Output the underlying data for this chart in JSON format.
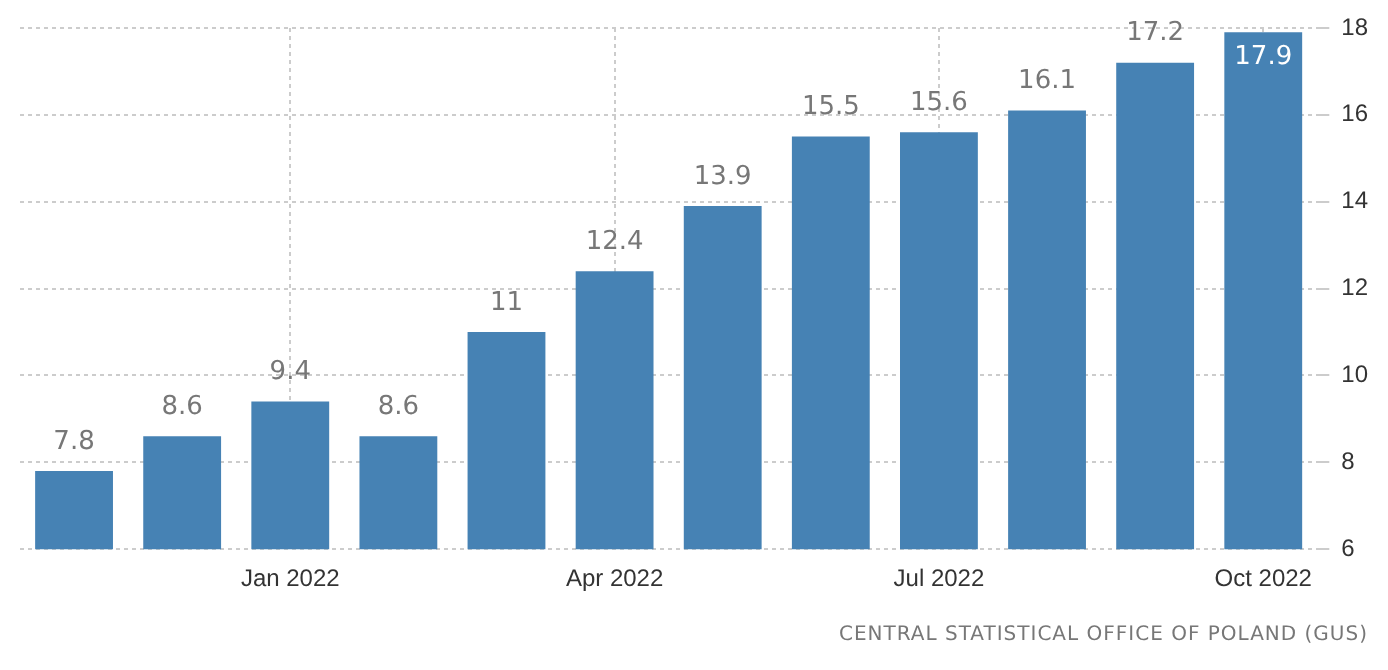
{
  "chart_data": {
    "type": "bar",
    "categories": [
      null,
      null,
      "Jan 2022",
      null,
      null,
      "Apr 2022",
      null,
      null,
      "Jul 2022",
      null,
      null,
      "Oct 2022"
    ],
    "values": [
      7.8,
      8.6,
      9.4,
      8.6,
      11,
      12.4,
      13.9,
      15.5,
      15.6,
      16.1,
      17.2,
      17.9
    ],
    "color": "#4682b4",
    "ylim": [
      6,
      18
    ],
    "yticks": [
      6,
      8,
      10,
      12,
      14,
      16,
      18
    ],
    "grid": true,
    "data_labels": true,
    "annotations": [
      "CENTRAL STATISTICAL OFFICE OF POLAND (GUS)"
    ]
  }
}
